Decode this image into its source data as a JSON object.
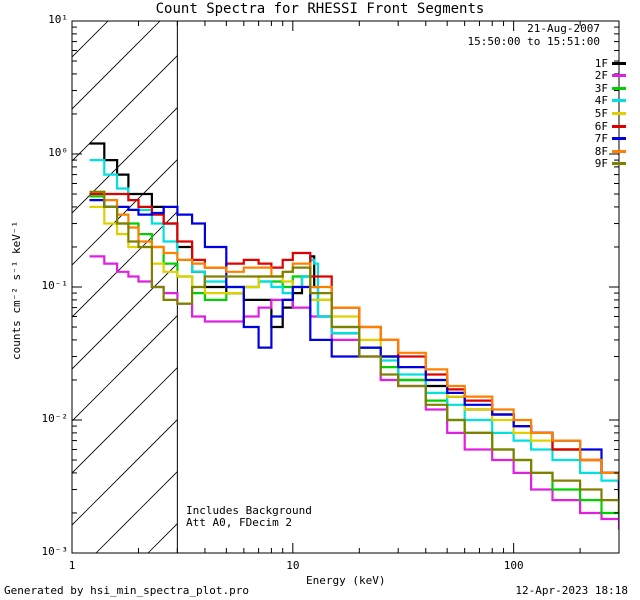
{
  "chart_data": {
    "type": "line",
    "title": "Count Spectra for RHESSI Front Segments",
    "xlabel": "Energy (keV)",
    "ylabel": "counts cm⁻² s⁻¹ keV⁻¹",
    "xscale": "log",
    "yscale": "log",
    "xlim": [
      1,
      300
    ],
    "ylim": [
      0.001,
      10
    ],
    "x_ticks": [
      {
        "value": 1,
        "label": "1"
      },
      {
        "value": 10,
        "label": "10"
      },
      {
        "value": 100,
        "label": "100"
      }
    ],
    "y_ticks": [
      {
        "value": 0.001,
        "label": "10⁻³"
      },
      {
        "value": 0.01,
        "label": "10⁻²"
      },
      {
        "value": 0.1,
        "label": "10⁻¹"
      },
      {
        "value": 1,
        "label": "10⁰"
      },
      {
        "value": 10,
        "label": "10¹"
      }
    ],
    "excluded_region": {
      "from": 1,
      "to": 3
    },
    "date": "21-Aug-2007",
    "time_range": "15:50:00 to 15:51:00",
    "annotations": [
      "Includes Background",
      "Att A0, FDecim 2"
    ],
    "series": [
      {
        "name": "1F",
        "color": "#000000",
        "x": [
          1.2,
          1.4,
          1.6,
          1.8,
          2.0,
          2.3,
          2.6,
          3.0,
          3.5,
          4.0,
          5.0,
          6.0,
          7.0,
          8.0,
          9.0,
          10.0,
          11.0,
          12.0,
          12.5,
          13.0,
          15.0,
          20.0,
          25.0,
          30.0,
          40.0,
          50.0,
          60.0,
          80.0,
          100.0,
          120.0,
          150.0,
          200.0,
          250.0,
          300.0
        ],
        "y": [
          1.2,
          0.9,
          0.7,
          0.5,
          0.5,
          0.4,
          0.3,
          0.2,
          0.13,
          0.1,
          0.09,
          0.08,
          0.08,
          0.05,
          0.07,
          0.09,
          0.12,
          0.17,
          0.1,
          0.06,
          0.045,
          0.035,
          0.03,
          0.02,
          0.018,
          0.015,
          0.012,
          0.011,
          0.009,
          0.008,
          0.006,
          0.005,
          0.004,
          0.002
        ]
      },
      {
        "name": "2F",
        "color": "#e020e0",
        "x": [
          1.2,
          1.4,
          1.6,
          1.8,
          2.0,
          2.3,
          2.6,
          3.0,
          3.5,
          4.0,
          5.0,
          6.0,
          7.0,
          8.0,
          9.0,
          10.0,
          12.0,
          15.0,
          20.0,
          25.0,
          30.0,
          40.0,
          50.0,
          60.0,
          80.0,
          100.0,
          120.0,
          150.0,
          200.0,
          250.0,
          300.0
        ],
        "y": [
          0.17,
          0.15,
          0.13,
          0.12,
          0.11,
          0.1,
          0.09,
          0.075,
          0.06,
          0.055,
          0.055,
          0.06,
          0.07,
          0.08,
          0.08,
          0.07,
          0.06,
          0.04,
          0.03,
          0.02,
          0.018,
          0.012,
          0.008,
          0.006,
          0.005,
          0.004,
          0.003,
          0.0025,
          0.002,
          0.0018,
          0.0015
        ]
      },
      {
        "name": "3F",
        "color": "#00d000",
        "x": [
          1.2,
          1.4,
          1.6,
          1.8,
          2.0,
          2.3,
          2.6,
          3.0,
          3.5,
          4.0,
          5.0,
          6.0,
          7.0,
          8.0,
          9.0,
          10.0,
          12.0,
          15.0,
          20.0,
          25.0,
          30.0,
          40.0,
          50.0,
          60.0,
          80.0,
          100.0,
          120.0,
          150.0,
          200.0,
          250.0,
          300.0
        ],
        "y": [
          0.48,
          0.4,
          0.3,
          0.3,
          0.25,
          0.2,
          0.15,
          0.12,
          0.09,
          0.08,
          0.09,
          0.1,
          0.11,
          0.11,
          0.1,
          0.12,
          0.08,
          0.05,
          0.035,
          0.025,
          0.02,
          0.014,
          0.01,
          0.008,
          0.006,
          0.005,
          0.004,
          0.003,
          0.0025,
          0.002,
          0.0018
        ]
      },
      {
        "name": "4F",
        "color": "#00e0e0",
        "x": [
          1.2,
          1.4,
          1.6,
          1.8,
          2.0,
          2.3,
          2.6,
          3.0,
          3.5,
          4.0,
          5.0,
          6.0,
          7.0,
          8.0,
          9.0,
          10.0,
          11.0,
          12.0,
          12.5,
          13.0,
          15.0,
          20.0,
          25.0,
          30.0,
          40.0,
          50.0,
          60.0,
          80.0,
          100.0,
          120.0,
          150.0,
          200.0,
          250.0,
          300.0
        ],
        "y": [
          0.9,
          0.7,
          0.55,
          0.45,
          0.38,
          0.3,
          0.22,
          0.16,
          0.13,
          0.11,
          0.1,
          0.1,
          0.11,
          0.1,
          0.09,
          0.1,
          0.12,
          0.16,
          0.15,
          0.06,
          0.045,
          0.035,
          0.028,
          0.022,
          0.016,
          0.013,
          0.01,
          0.008,
          0.007,
          0.006,
          0.005,
          0.004,
          0.0035,
          0.003
        ]
      },
      {
        "name": "5F",
        "color": "#e0d000",
        "x": [
          1.2,
          1.4,
          1.6,
          1.8,
          2.0,
          2.3,
          2.6,
          3.0,
          3.5,
          4.0,
          5.0,
          6.0,
          7.0,
          8.0,
          9.0,
          10.0,
          12.0,
          15.0,
          20.0,
          25.0,
          30.0,
          40.0,
          50.0,
          60.0,
          80.0,
          100.0,
          120.0,
          150.0,
          200.0,
          250.0,
          300.0
        ],
        "y": [
          0.4,
          0.3,
          0.25,
          0.2,
          0.2,
          0.15,
          0.13,
          0.12,
          0.1,
          0.09,
          0.09,
          0.1,
          0.12,
          0.12,
          0.11,
          0.1,
          0.08,
          0.06,
          0.04,
          0.03,
          0.025,
          0.02,
          0.015,
          0.012,
          0.01,
          0.008,
          0.007,
          0.006,
          0.005,
          0.004,
          0.003
        ]
      },
      {
        "name": "6F",
        "color": "#e00000",
        "x": [
          1.2,
          1.4,
          1.6,
          1.8,
          2.0,
          2.3,
          2.6,
          3.0,
          3.5,
          4.0,
          5.0,
          6.0,
          7.0,
          8.0,
          9.0,
          10.0,
          12.0,
          15.0,
          20.0,
          25.0,
          30.0,
          40.0,
          50.0,
          60.0,
          80.0,
          100.0,
          120.0,
          150.0,
          200.0,
          250.0,
          300.0
        ],
        "y": [
          0.5,
          0.5,
          0.5,
          0.45,
          0.4,
          0.35,
          0.3,
          0.22,
          0.16,
          0.14,
          0.15,
          0.16,
          0.15,
          0.14,
          0.16,
          0.18,
          0.12,
          0.07,
          0.05,
          0.04,
          0.03,
          0.022,
          0.017,
          0.014,
          0.011,
          0.009,
          0.008,
          0.006,
          0.005,
          0.004,
          0.003
        ]
      },
      {
        "name": "7F",
        "color": "#0000e0",
        "x": [
          1.2,
          1.4,
          1.6,
          1.8,
          2.0,
          2.3,
          2.6,
          3.0,
          3.5,
          4.0,
          5.0,
          6.0,
          7.0,
          8.0,
          9.0,
          10.0,
          12.0,
          15.0,
          20.0,
          25.0,
          30.0,
          40.0,
          50.0,
          60.0,
          80.0,
          100.0,
          120.0,
          150.0,
          200.0,
          250.0,
          300.0
        ],
        "y": [
          0.45,
          0.4,
          0.4,
          0.38,
          0.35,
          0.36,
          0.4,
          0.35,
          0.3,
          0.2,
          0.1,
          0.05,
          0.035,
          0.06,
          0.08,
          0.1,
          0.04,
          0.03,
          0.035,
          0.03,
          0.025,
          0.02,
          0.016,
          0.013,
          0.011,
          0.009,
          0.008,
          0.007,
          0.006,
          0.004,
          0.003
        ]
      },
      {
        "name": "8F",
        "color": "#ff8000",
        "x": [
          1.2,
          1.4,
          1.6,
          1.8,
          2.0,
          2.3,
          2.6,
          3.0,
          3.5,
          4.0,
          5.0,
          6.0,
          7.0,
          8.0,
          9.0,
          10.0,
          12.0,
          15.0,
          20.0,
          25.0,
          30.0,
          40.0,
          50.0,
          60.0,
          80.0,
          100.0,
          120.0,
          150.0,
          200.0,
          250.0,
          300.0
        ],
        "y": [
          0.52,
          0.45,
          0.35,
          0.28,
          0.22,
          0.2,
          0.18,
          0.16,
          0.15,
          0.14,
          0.13,
          0.14,
          0.14,
          0.12,
          0.13,
          0.15,
          0.1,
          0.07,
          0.05,
          0.04,
          0.032,
          0.024,
          0.018,
          0.015,
          0.012,
          0.01,
          0.008,
          0.007,
          0.005,
          0.004,
          0.0035
        ]
      },
      {
        "name": "9F",
        "color": "#808000",
        "x": [
          1.2,
          1.4,
          1.6,
          1.8,
          2.0,
          2.3,
          2.6,
          3.0,
          3.5,
          4.0,
          5.0,
          6.0,
          7.0,
          8.0,
          9.0,
          10.0,
          12.0,
          15.0,
          20.0,
          25.0,
          30.0,
          40.0,
          50.0,
          60.0,
          80.0,
          100.0,
          120.0,
          150.0,
          200.0,
          250.0,
          300.0
        ],
        "y": [
          0.52,
          0.4,
          0.3,
          0.22,
          0.2,
          0.1,
          0.08,
          0.075,
          0.1,
          0.12,
          0.12,
          0.12,
          0.12,
          0.12,
          0.13,
          0.14,
          0.09,
          0.05,
          0.03,
          0.022,
          0.018,
          0.013,
          0.01,
          0.008,
          0.006,
          0.005,
          0.004,
          0.0035,
          0.003,
          0.0025,
          0.002
        ]
      }
    ]
  },
  "footer": {
    "generated_by": "Generated by hsi_min_spectra_plot.pro",
    "timestamp": "12-Apr-2023 18:18"
  }
}
